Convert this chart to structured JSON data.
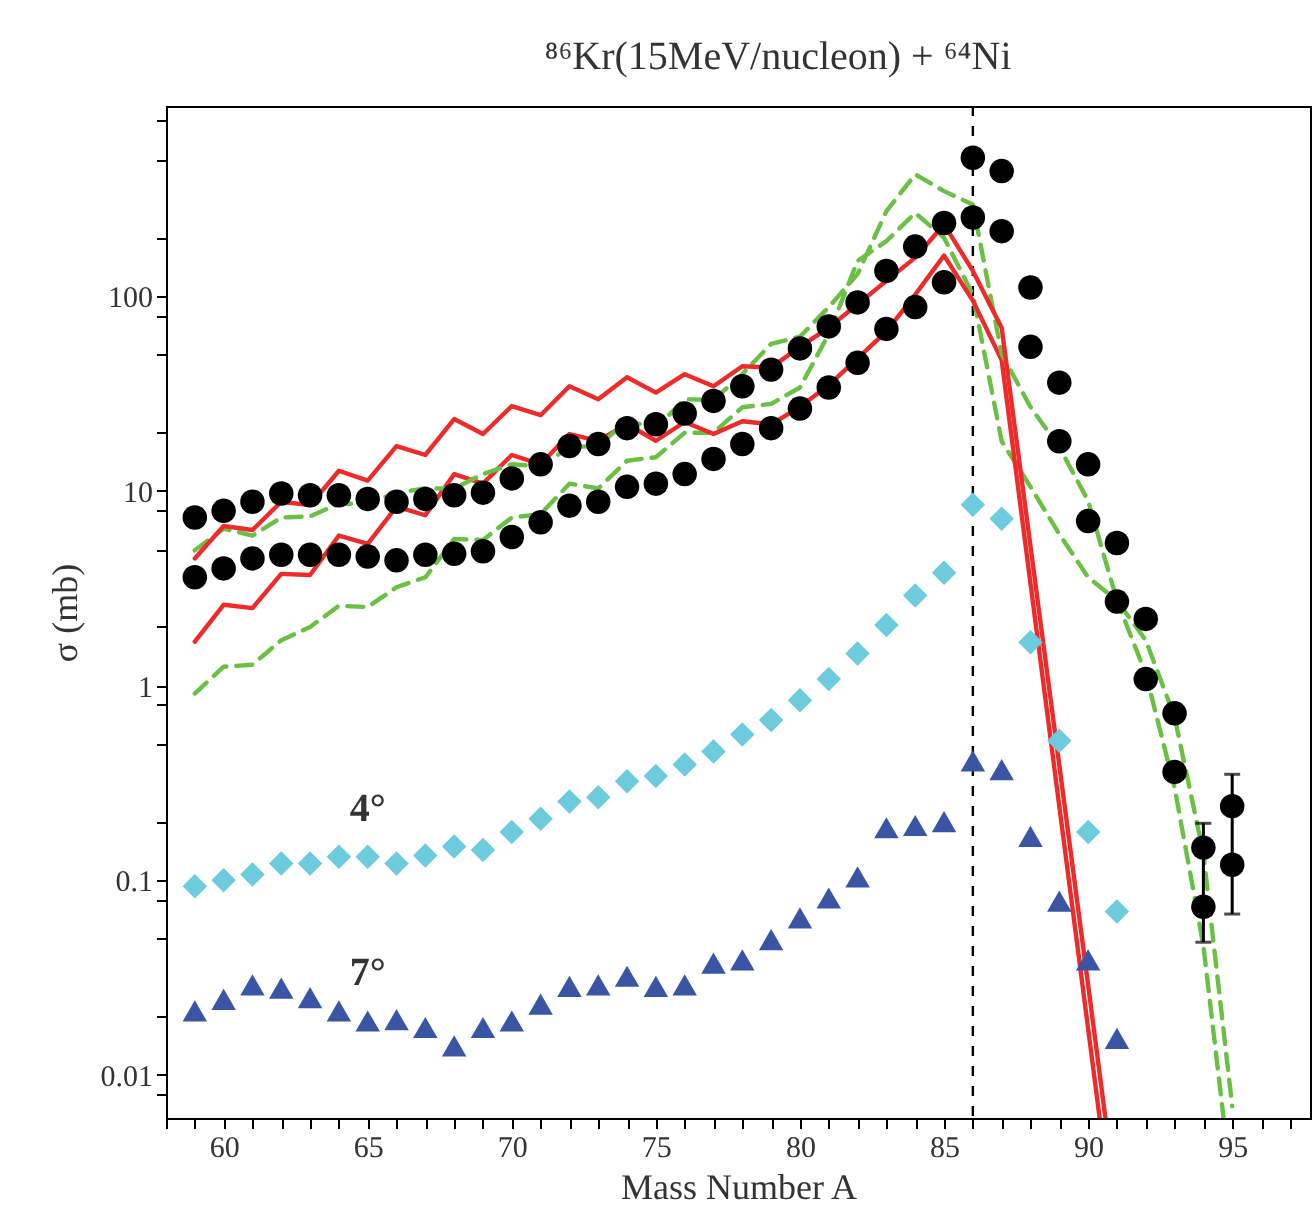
{
  "chart_data": {
    "type": "scatter",
    "title": "⁸⁶Kr(15MeV/nucleon) + ⁶⁴Ni",
    "xlabel": "Mass Number A",
    "ylabel": "σ (mb)",
    "log": "y",
    "xlim": [
      58,
      97.7
    ],
    "ylim": [
      0.006,
      950
    ],
    "xticks": [
      {
        "value": 58,
        "label": null
      },
      {
        "value": 59,
        "label": null
      },
      60,
      {
        "value": 61,
        "label": null
      },
      {
        "value": 62,
        "label": null
      },
      {
        "value": 63,
        "label": null
      },
      {
        "value": 64,
        "label": null
      },
      65,
      {
        "value": 66,
        "label": null
      },
      {
        "value": 67,
        "label": null
      },
      {
        "value": 68,
        "label": null
      },
      {
        "value": 69,
        "label": null
      },
      70,
      {
        "value": 71,
        "label": null
      },
      {
        "value": 72,
        "label": null
      },
      {
        "value": 73,
        "label": null
      },
      {
        "value": 74,
        "label": null
      },
      75,
      {
        "value": 76,
        "label": null
      },
      {
        "value": 77,
        "label": null
      },
      {
        "value": 78,
        "label": null
      },
      {
        "value": 79,
        "label": null
      },
      80,
      {
        "value": 81,
        "label": null
      },
      {
        "value": 82,
        "label": null
      },
      {
        "value": 83,
        "label": null
      },
      {
        "value": 84,
        "label": null
      },
      85,
      {
        "value": 86,
        "label": null
      },
      {
        "value": 87,
        "label": null
      },
      {
        "value": 88,
        "label": null
      },
      {
        "value": 89,
        "label": null
      },
      90,
      {
        "value": 91,
        "label": null
      },
      {
        "value": 92,
        "label": null
      },
      {
        "value": 93,
        "label": null
      },
      {
        "value": 94,
        "label": null
      },
      95,
      {
        "value": 96,
        "label": null
      },
      {
        "value": 97,
        "label": null
      }
    ],
    "yticks": [
      {
        "value": 0.008,
        "label": null
      },
      0.01,
      {
        "value": 0.02,
        "label": null
      },
      {
        "value": 0.05,
        "label": null
      },
      {
        "value": 0.08,
        "label": null
      },
      0.1,
      {
        "value": 0.2,
        "label": null
      },
      {
        "value": 0.5,
        "label": null
      },
      {
        "value": 0.8,
        "label": null
      },
      1,
      {
        "value": 2,
        "label": null
      },
      {
        "value": 5,
        "label": null
      },
      {
        "value": 8,
        "label": null
      },
      10,
      {
        "value": 20,
        "label": null
      },
      {
        "value": 50,
        "label": null
      },
      {
        "value": 80,
        "label": null
      },
      100,
      {
        "value": 200,
        "label": null
      },
      {
        "value": 500,
        "label": null
      },
      {
        "value": 800,
        "label": null
      }
    ],
    "grid": false,
    "x": [
      59,
      60,
      61,
      62,
      63,
      64,
      65,
      66,
      67,
      68,
      69,
      70,
      71,
      72,
      73,
      74,
      75,
      76,
      77,
      78,
      79,
      80,
      81,
      82,
      83,
      84,
      85,
      86,
      87,
      88,
      89,
      90,
      91,
      92,
      93,
      94,
      95
    ],
    "series": [
      {
        "type": "line",
        "color": "#6cbf45",
        "line_style": "dashed",
        "marker": "none",
        "x": [
          59,
          60,
          61,
          62,
          63,
          64,
          65,
          66,
          67,
          68,
          69,
          70,
          71,
          72,
          73,
          74,
          75,
          76,
          77,
          78,
          79,
          80,
          81,
          82,
          83,
          84,
          85,
          86,
          87,
          88,
          89,
          90,
          91,
          92,
          93,
          94,
          94.7
        ],
        "values": [
          0.91,
          1.25,
          1.28,
          1.71,
          2.0,
          2.57,
          2.53,
          3.2,
          3.6,
          5.66,
          5.6,
          7.3,
          7.6,
          10.9,
          10.3,
          14.3,
          14.9,
          19.9,
          19.9,
          26.9,
          28,
          34,
          64,
          152,
          192,
          268,
          200,
          102,
          18,
          10.5,
          6.0,
          3.6,
          2.74,
          1.15,
          0.3,
          0.046,
          0.006
        ]
      },
      {
        "type": "line",
        "color": "#ee2a2a",
        "line_style": "solid",
        "marker": "none",
        "x": [
          59,
          60,
          61,
          62,
          63,
          64,
          65,
          66,
          67,
          68,
          69,
          70,
          71,
          72,
          73,
          74,
          75,
          76,
          77,
          78,
          79,
          80,
          81,
          82,
          83,
          84,
          85,
          86,
          87,
          88,
          89,
          90,
          90.4
        ],
        "values": [
          1.68,
          2.6,
          2.5,
          3.75,
          3.7,
          5.9,
          5.35,
          8.3,
          7.5,
          12.2,
          10.9,
          15.3,
          13.7,
          19.6,
          18.1,
          22,
          18.1,
          22.6,
          19.6,
          22.8,
          22,
          27,
          35,
          48,
          66,
          102,
          162,
          95,
          47,
          3.35,
          0.24,
          0.0173,
          0.006
        ]
      },
      {
        "type": "line",
        "color": "#6cbf45",
        "line_style": "dashed",
        "marker": "none",
        "values": [
          4.95,
          6.4,
          5.9,
          7.3,
          7.4,
          8.6,
          8.6,
          9.8,
          10.3,
          10.3,
          12.2,
          13.7,
          13.4,
          16.8,
          17,
          23,
          21,
          29.6,
          29.3,
          39.8,
          57,
          62,
          88,
          130,
          274,
          423,
          347,
          296,
          50.5,
          27,
          16.8,
          8.9,
          2.74,
          1.71,
          0.69,
          0.137,
          0.0069
        ]
      },
      {
        "type": "line",
        "color": "#ee2a2a",
        "line_style": "solid",
        "marker": "none",
        "x": [
          59,
          60,
          61,
          62,
          63,
          64,
          65,
          66,
          67,
          68,
          69,
          70,
          71,
          72,
          73,
          74,
          75,
          76,
          77,
          78,
          79,
          80,
          81,
          82,
          83,
          84,
          85,
          86,
          87,
          88,
          89,
          90,
          90.6
        ],
        "values": [
          4.5,
          6.6,
          6.3,
          8.8,
          8.45,
          12.7,
          11.3,
          17,
          15.3,
          23.4,
          19.6,
          27.3,
          24.5,
          34.5,
          29.6,
          38.4,
          32,
          39.8,
          34.5,
          43.7,
          43,
          55,
          69,
          91,
          120,
          158,
          234,
          135,
          69,
          5.2,
          0.39,
          0.029,
          0.006
        ]
      },
      {
        "color": "#000000",
        "marker": "circle",
        "values": [
          7.3,
          7.9,
          8.8,
          9.7,
          9.5,
          9.5,
          9.1,
          8.8,
          9.1,
          9.5,
          9.8,
          11.6,
          13.7,
          17,
          17.4,
          21,
          22,
          25,
          29,
          34.5,
          42,
          54,
          70,
          93,
          135,
          180,
          238,
          515,
          440,
          111,
          36,
          13.7,
          5.4,
          2.2,
          0.72,
          0.147,
          0.24
        ]
      },
      {
        "color": "#000000",
        "marker": "circle",
        "values": [
          3.6,
          4.0,
          4.5,
          4.7,
          4.7,
          4.7,
          4.6,
          4.4,
          4.7,
          4.75,
          4.9,
          5.8,
          6.9,
          8.4,
          8.8,
          10.5,
          10.9,
          12.2,
          14.6,
          17.4,
          21,
          26.5,
          34,
          45.5,
          68,
          88,
          118,
          254,
          216,
          55,
          18,
          7.0,
          2.7,
          1.08,
          0.36,
          0.073,
          0.12
        ],
        "errors": [
          null,
          null,
          null,
          null,
          null,
          null,
          null,
          null,
          null,
          null,
          null,
          null,
          null,
          null,
          null,
          null,
          null,
          null,
          null,
          null,
          null,
          null,
          null,
          null,
          null,
          null,
          null,
          null,
          null,
          null,
          null,
          null,
          null,
          null,
          null,
          [
            0.048,
            0.196
          ],
          [
            0.067,
            0.35
          ]
        ]
      },
      {
        "name": "4°",
        "color": "#6ccbdc",
        "marker": "diamond",
        "x": [
          59,
          60,
          61,
          62,
          63,
          64,
          65,
          66,
          67,
          68,
          69,
          70,
          71,
          72,
          73,
          74,
          75,
          76,
          77,
          78,
          79,
          80,
          81,
          82,
          83,
          84,
          85,
          86,
          87,
          88,
          89,
          90,
          91
        ],
        "values": [
          0.093,
          0.1,
          0.107,
          0.122,
          0.122,
          0.132,
          0.132,
          0.122,
          0.134,
          0.149,
          0.143,
          0.177,
          0.207,
          0.254,
          0.267,
          0.322,
          0.343,
          0.393,
          0.459,
          0.56,
          0.665,
          0.84,
          1.08,
          1.46,
          2.05,
          2.9,
          3.8,
          8.5,
          7.2,
          1.67,
          0.52,
          0.177,
          0.069
        ]
      },
      {
        "name": "7°",
        "color": "#3a55a4",
        "marker": "triangle",
        "x": [
          59,
          60,
          61,
          62,
          63,
          64,
          65,
          66,
          67,
          68,
          69,
          70,
          71,
          72,
          73,
          74,
          75,
          76,
          77,
          78,
          79,
          80,
          81,
          82,
          83,
          84,
          85,
          86,
          87,
          88,
          89,
          90,
          91
        ],
        "values": [
          0.0213,
          0.0244,
          0.029,
          0.0279,
          0.0249,
          0.0213,
          0.0189,
          0.0192,
          0.0175,
          0.0141,
          0.0175,
          0.0189,
          0.0231,
          0.0285,
          0.029,
          0.0321,
          0.0285,
          0.029,
          0.0375,
          0.039,
          0.0495,
          0.064,
          0.081,
          0.104,
          0.186,
          0.191,
          0.2,
          0.41,
          0.37,
          0.168,
          0.078,
          0.039,
          0.0154
        ]
      }
    ],
    "ref_lines": [
      {
        "axis": "x",
        "value": 86,
        "color": "#000000",
        "line_style": "dashed"
      }
    ]
  }
}
